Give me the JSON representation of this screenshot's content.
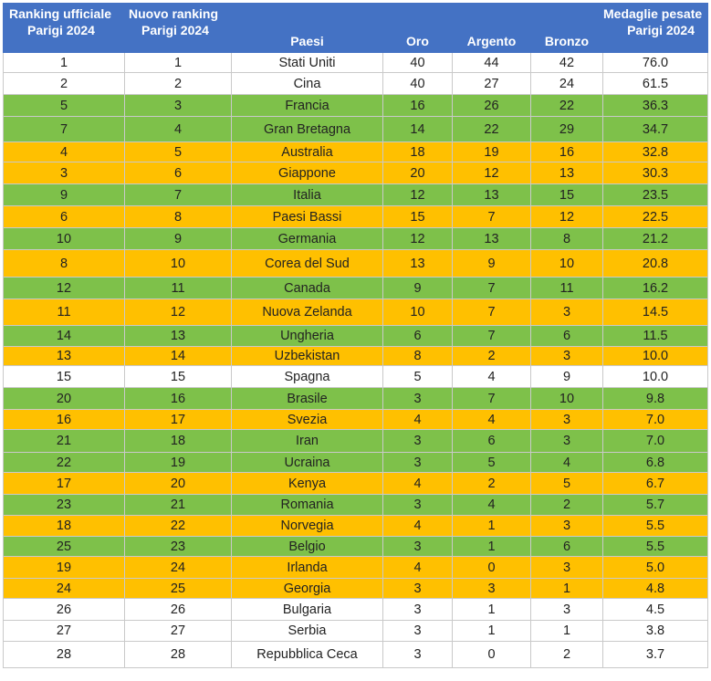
{
  "table": {
    "headers": {
      "ranking_ufficiale": [
        "Ranking ufficiale",
        "Parigi 2024"
      ],
      "nuovo_ranking": [
        "Nuovo ranking",
        "Parigi 2024"
      ],
      "paesi": "Paesi",
      "oro": "Oro",
      "argento": "Argento",
      "bronzo": "Bronzo",
      "medaglie_pesate": [
        "Medaglie pesate",
        "Parigi 2024"
      ]
    },
    "colors": {
      "header": "#4472c4",
      "green": "#7ec14a",
      "orange": "#ffc000",
      "white": "#ffffff"
    },
    "rows": [
      {
        "uff": "1",
        "nuovo": "1",
        "paese": "Stati Uniti",
        "oro": "40",
        "argento": "44",
        "bronzo": "42",
        "pesate": "76.0",
        "color": "w"
      },
      {
        "uff": "2",
        "nuovo": "2",
        "paese": "Cina",
        "oro": "40",
        "argento": "27",
        "bronzo": "24",
        "pesate": "61.5",
        "color": "w"
      },
      {
        "uff": "5",
        "nuovo": "3",
        "paese": "Francia",
        "oro": "16",
        "argento": "26",
        "bronzo": "22",
        "pesate": "36.3",
        "color": "g"
      },
      {
        "uff": "7",
        "nuovo": "4",
        "paese": "Gran Bretagna",
        "oro": "14",
        "argento": "22",
        "bronzo": "29",
        "pesate": "34.7",
        "color": "g"
      },
      {
        "uff": "4",
        "nuovo": "5",
        "paese": "Australia",
        "oro": "18",
        "argento": "19",
        "bronzo": "16",
        "pesate": "32.8",
        "color": "o"
      },
      {
        "uff": "3",
        "nuovo": "6",
        "paese": "Giappone",
        "oro": "20",
        "argento": "12",
        "bronzo": "13",
        "pesate": "30.3",
        "color": "o"
      },
      {
        "uff": "9",
        "nuovo": "7",
        "paese": "Italia",
        "oro": "12",
        "argento": "13",
        "bronzo": "15",
        "pesate": "23.5",
        "color": "g"
      },
      {
        "uff": "6",
        "nuovo": "8",
        "paese": "Paesi Bassi",
        "oro": "15",
        "argento": "7",
        "bronzo": "12",
        "pesate": "22.5",
        "color": "o"
      },
      {
        "uff": "10",
        "nuovo": "9",
        "paese": "Germania",
        "oro": "12",
        "argento": "13",
        "bronzo": "8",
        "pesate": "21.2",
        "color": "g"
      },
      {
        "uff": "8",
        "nuovo": "10",
        "paese": "Corea del Sud",
        "oro": "13",
        "argento": "9",
        "bronzo": "10",
        "pesate": "20.8",
        "color": "o"
      },
      {
        "uff": "12",
        "nuovo": "11",
        "paese": "Canada",
        "oro": "9",
        "argento": "7",
        "bronzo": "11",
        "pesate": "16.2",
        "color": "g"
      },
      {
        "uff": "11",
        "nuovo": "12",
        "paese": "Nuova Zelanda",
        "oro": "10",
        "argento": "7",
        "bronzo": "3",
        "pesate": "14.5",
        "color": "o"
      },
      {
        "uff": "14",
        "nuovo": "13",
        "paese": "Ungheria",
        "oro": "6",
        "argento": "7",
        "bronzo": "6",
        "pesate": "11.5",
        "color": "g"
      },
      {
        "uff": "13",
        "nuovo": "14",
        "paese": "Uzbekistan",
        "oro": "8",
        "argento": "2",
        "bronzo": "3",
        "pesate": "10.0",
        "color": "o"
      },
      {
        "uff": "15",
        "nuovo": "15",
        "paese": "Spagna",
        "oro": "5",
        "argento": "4",
        "bronzo": "9",
        "pesate": "10.0",
        "color": "w"
      },
      {
        "uff": "20",
        "nuovo": "16",
        "paese": "Brasile",
        "oro": "3",
        "argento": "7",
        "bronzo": "10",
        "pesate": "9.8",
        "color": "g"
      },
      {
        "uff": "16",
        "nuovo": "17",
        "paese": "Svezia",
        "oro": "4",
        "argento": "4",
        "bronzo": "3",
        "pesate": "7.0",
        "color": "o"
      },
      {
        "uff": "21",
        "nuovo": "18",
        "paese": "Iran",
        "oro": "3",
        "argento": "6",
        "bronzo": "3",
        "pesate": "7.0",
        "color": "g"
      },
      {
        "uff": "22",
        "nuovo": "19",
        "paese": "Ucraina",
        "oro": "3",
        "argento": "5",
        "bronzo": "4",
        "pesate": "6.8",
        "color": "g"
      },
      {
        "uff": "17",
        "nuovo": "20",
        "paese": "Kenya",
        "oro": "4",
        "argento": "2",
        "bronzo": "5",
        "pesate": "6.7",
        "color": "o"
      },
      {
        "uff": "23",
        "nuovo": "21",
        "paese": "Romania",
        "oro": "3",
        "argento": "4",
        "bronzo": "2",
        "pesate": "5.7",
        "color": "g"
      },
      {
        "uff": "18",
        "nuovo": "22",
        "paese": "Norvegia",
        "oro": "4",
        "argento": "1",
        "bronzo": "3",
        "pesate": "5.5",
        "color": "o"
      },
      {
        "uff": "25",
        "nuovo": "23",
        "paese": "Belgio",
        "oro": "3",
        "argento": "1",
        "bronzo": "6",
        "pesate": "5.5",
        "color": "g"
      },
      {
        "uff": "19",
        "nuovo": "24",
        "paese": "Irlanda",
        "oro": "4",
        "argento": "0",
        "bronzo": "3",
        "pesate": "5.0",
        "color": "o"
      },
      {
        "uff": "24",
        "nuovo": "25",
        "paese": "Georgia",
        "oro": "3",
        "argento": "3",
        "bronzo": "1",
        "pesate": "4.8",
        "color": "o"
      },
      {
        "uff": "26",
        "nuovo": "26",
        "paese": "Bulgaria",
        "oro": "3",
        "argento": "1",
        "bronzo": "3",
        "pesate": "4.5",
        "color": "w"
      },
      {
        "uff": "27",
        "nuovo": "27",
        "paese": "Serbia",
        "oro": "3",
        "argento": "1",
        "bronzo": "1",
        "pesate": "3.8",
        "color": "w"
      },
      {
        "uff": "28",
        "nuovo": "28",
        "paese": "Repubblica Ceca",
        "oro": "3",
        "argento": "0",
        "bronzo": "2",
        "pesate": "3.7",
        "color": "w"
      }
    ]
  }
}
